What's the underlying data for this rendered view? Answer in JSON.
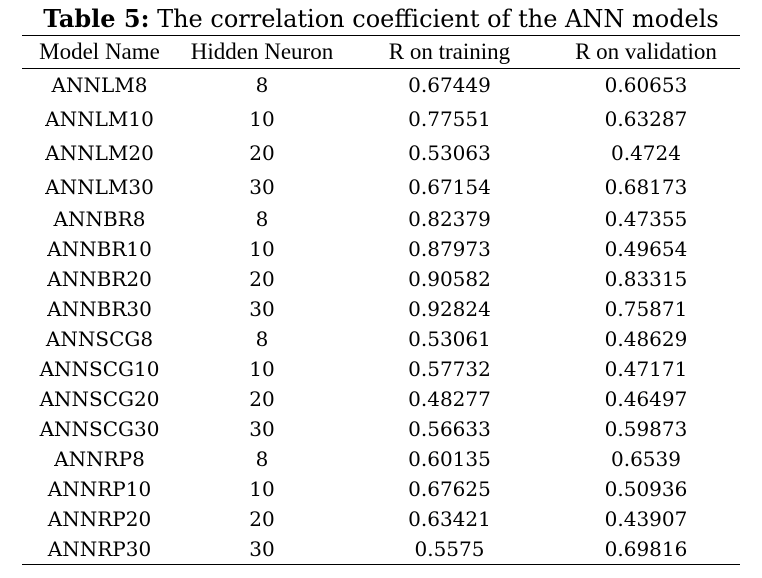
{
  "caption": {
    "lead": "Table 5:",
    "text": " The correlation coefficient of the ANN models"
  },
  "table": {
    "headers": [
      "Model Name",
      "Hidden Neuron",
      "R on training",
      "R on validation"
    ],
    "rows": [
      [
        "ANNLM8",
        "8",
        "0.67449",
        "0.60653"
      ],
      [
        "ANNLM10",
        "10",
        "0.77551",
        "0.63287"
      ],
      [
        "ANNLM20",
        "20",
        "0.53063",
        "0.4724"
      ],
      [
        "ANNLM30",
        "30",
        "0.67154",
        "0.68173"
      ],
      [
        "ANNBR8",
        "8",
        "0.82379",
        "0.47355"
      ],
      [
        "ANNBR10",
        "10",
        "0.87973",
        "0.49654"
      ],
      [
        "ANNBR20",
        "20",
        "0.90582",
        "0.83315"
      ],
      [
        "ANNBR30",
        "30",
        "0.92824",
        "0.75871"
      ],
      [
        "ANNSCG8",
        "8",
        "0.53061",
        "0.48629"
      ],
      [
        "ANNSCG10",
        "10",
        "0.57732",
        "0.47171"
      ],
      [
        "ANNSCG20",
        "20",
        "0.48277",
        "0.46497"
      ],
      [
        "ANNSCG30",
        "30",
        "0.56633",
        "0.59873"
      ],
      [
        "ANNRP8",
        "8",
        "0.60135",
        "0.6539"
      ],
      [
        "ANNRP10",
        "10",
        "0.67625",
        "0.50936"
      ],
      [
        "ANNRP20",
        "20",
        "0.63421",
        "0.43907"
      ],
      [
        "ANNRP30",
        "30",
        "0.5575",
        "0.69816"
      ]
    ]
  }
}
